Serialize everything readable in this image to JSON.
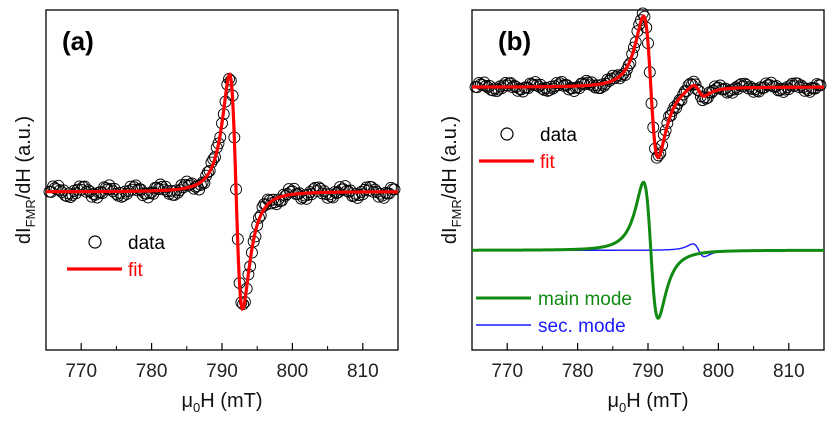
{
  "chart_data": [
    {
      "type": "line",
      "panel_label": "(a)",
      "xlabel": "μ0H (mT)",
      "ylabel": "dIFMR/dH (a.u.)",
      "xlim": [
        765,
        815
      ],
      "ylim": [
        -1.35,
        1.55
      ],
      "xticks": [
        770,
        780,
        790,
        800,
        810
      ],
      "yticks": [],
      "model": {
        "H0": 792.0,
        "width": 1.6,
        "amplitude": 1.0,
        "baseline": 0.0
      },
      "series": [
        {
          "name": "data",
          "style": "open-circle",
          "color": "#000000",
          "x_start": 765.5,
          "x_end": 814.5,
          "x_step": 0.25
        },
        {
          "name": "fit",
          "style": "line",
          "color": "#ff0000",
          "x_start": 765,
          "x_end": 815,
          "x_step": 0.1
        }
      ],
      "legend": [
        {
          "label": "data",
          "symbol": "circle",
          "color": "#000000"
        },
        {
          "label": "fit",
          "symbol": "line",
          "color": "#ff0000"
        }
      ],
      "legend_location": "lower-left"
    },
    {
      "type": "line",
      "panel_label": "(b)",
      "xlabel": "μ0H (mT)",
      "ylabel": "dIFMR/dH (a.u.)",
      "xlim": [
        765,
        815
      ],
      "ylim": [
        -1.85,
        1.9
      ],
      "xticks": [
        770,
        780,
        790,
        800,
        810
      ],
      "yticks": [],
      "upper_model": {
        "baseline": 1.05,
        "main": {
          "H0": 790.4,
          "width": 1.8,
          "amplitude": 0.78
        },
        "sec": {
          "H0": 797.2,
          "width": 1.4,
          "amplitude": 0.07
        }
      },
      "lower_model": {
        "baseline": -0.75,
        "main": {
          "H0": 790.4,
          "width": 1.8,
          "amplitude": 0.75
        },
        "sec": {
          "H0": 797.2,
          "width": 1.4,
          "amplitude": 0.07
        }
      },
      "series": [
        {
          "name": "data",
          "style": "open-circle",
          "color": "#000000",
          "x_start": 765.5,
          "x_end": 814.5,
          "x_step": 0.25
        },
        {
          "name": "fit",
          "style": "line",
          "color": "#ff0000",
          "x_start": 765,
          "x_end": 815,
          "x_step": 0.1
        },
        {
          "name": "main mode",
          "style": "line",
          "color": "#118a11",
          "x_start": 765,
          "x_end": 815,
          "x_step": 0.1
        },
        {
          "name": "sec. mode",
          "style": "line",
          "color": "#1a1aff",
          "x_start": 765,
          "x_end": 815,
          "x_step": 0.1
        }
      ],
      "legend": [
        {
          "label": "data",
          "symbol": "circle",
          "color": "#000000"
        },
        {
          "label": "fit",
          "symbol": "line",
          "color": "#ff0000"
        },
        {
          "label": "main mode",
          "symbol": "line",
          "color": "#118a11"
        },
        {
          "label": "sec. mode",
          "symbol": "line",
          "color": "#1a1aff"
        }
      ]
    }
  ]
}
